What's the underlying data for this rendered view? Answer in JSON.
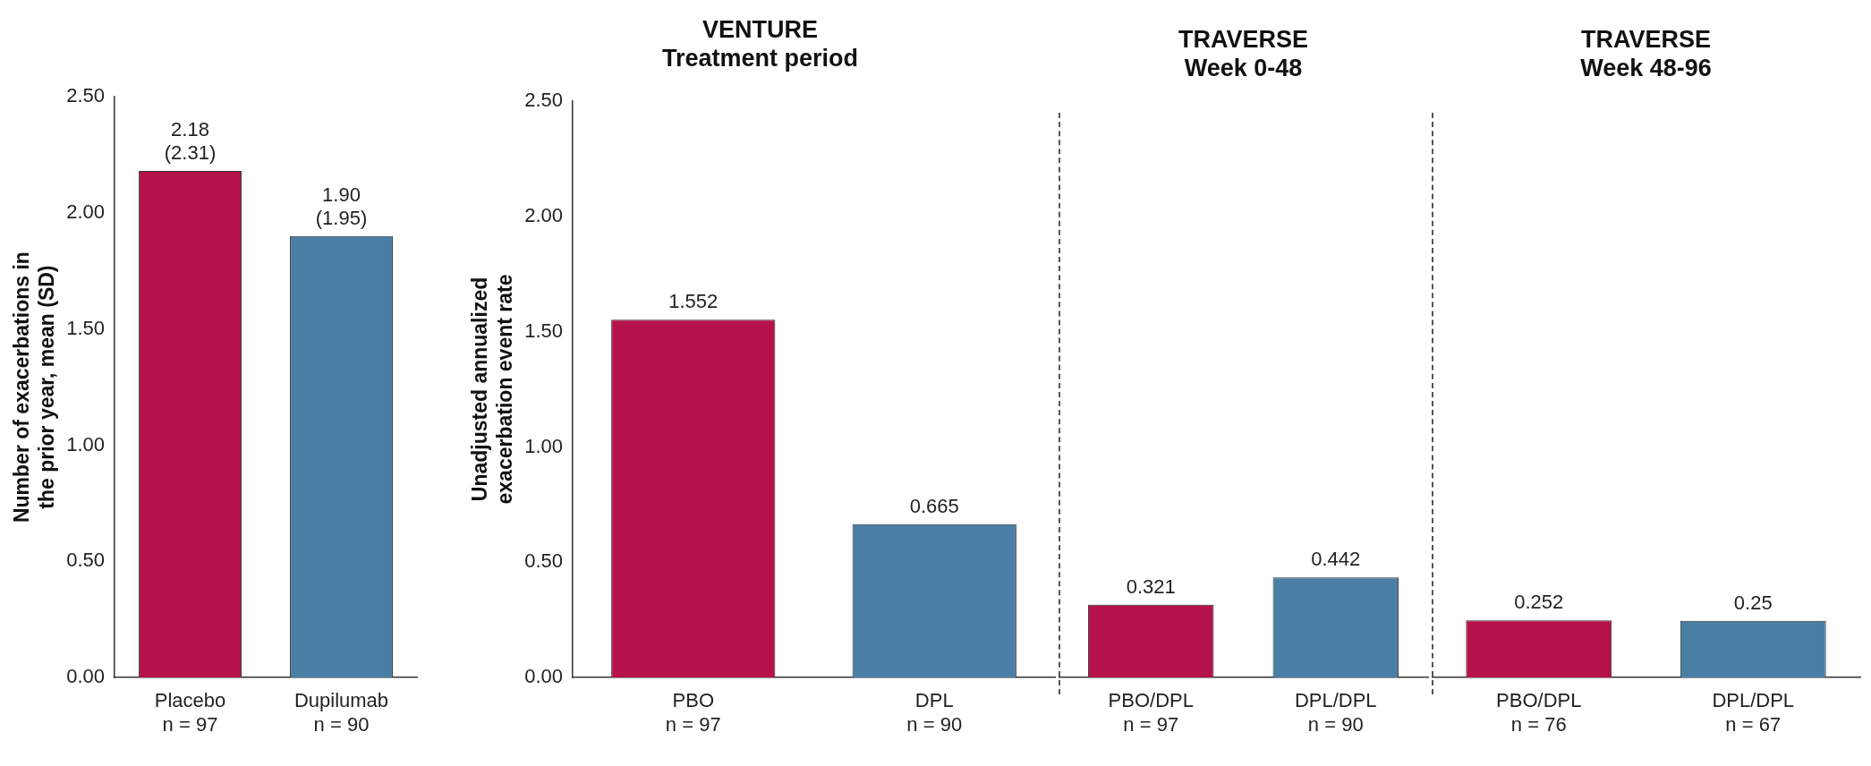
{
  "chart_data": [
    {
      "type": "bar",
      "ylabel": "Number of exacerbations in\nthe prior year, mean (SD)",
      "categories": [
        "Placebo\nn = 97",
        "Dupilumab\nn = 90"
      ],
      "values": [
        2.18,
        1.9
      ],
      "colors": [
        "#b5124b",
        "#4a7fa5"
      ],
      "value_labels": [
        "2.18\n(2.31)",
        "1.90\n(1.95)"
      ],
      "ylim": [
        0,
        2.5
      ],
      "yticks": [
        {
          "value": 0,
          "label": "0.00"
        },
        {
          "value": 0.5,
          "label": "0.50"
        },
        {
          "value": 1,
          "label": "1.00"
        },
        {
          "value": 1.5,
          "label": "1.50"
        },
        {
          "value": 2,
          "label": "2.00"
        },
        {
          "value": 2.5,
          "label": "2.50"
        }
      ]
    },
    {
      "type": "bar",
      "title": "VENTURE\nTreatment period",
      "ylabel": "Unadjusted annualized\nexacerbation event rate",
      "categories": [
        "PBO\nn = 97",
        "DPL\nn = 90"
      ],
      "values": [
        1.552,
        0.665
      ],
      "colors": [
        "#b5124b",
        "#4a7fa5"
      ],
      "data_labels": true,
      "ylim": [
        0,
        2.5
      ],
      "yticks": [
        {
          "value": 0,
          "label": "0.00"
        },
        {
          "value": 0.5,
          "label": "0.50"
        },
        {
          "value": 1,
          "label": "1.00"
        },
        {
          "value": 1.5,
          "label": "1.50"
        },
        {
          "value": 2,
          "label": "2.00"
        },
        {
          "value": 2.5,
          "label": "2.50"
        }
      ]
    },
    {
      "type": "bar",
      "title": "TRAVERSE\nWeek 0-48",
      "categories": [
        "PBO/DPL\nn = 97",
        "DPL/DPL\nn = 90"
      ],
      "values": [
        0.321,
        0.442
      ],
      "colors": [
        "#b5124b",
        "#4a7fa5"
      ],
      "data_labels": true,
      "ylim": [
        0,
        2.5
      ],
      "tick_labels": "x"
    },
    {
      "type": "bar",
      "title": "TRAVERSE\nWeek 48-96",
      "categories": [
        "PBO/DPL\nn = 76",
        "DPL/DPL\nn = 67"
      ],
      "values": [
        0.252,
        0.25
      ],
      "colors": [
        "#b5124b",
        "#4a7fa5"
      ],
      "data_labels": true,
      "ylim": [
        0,
        2.5
      ],
      "tick_labels": "x"
    }
  ]
}
